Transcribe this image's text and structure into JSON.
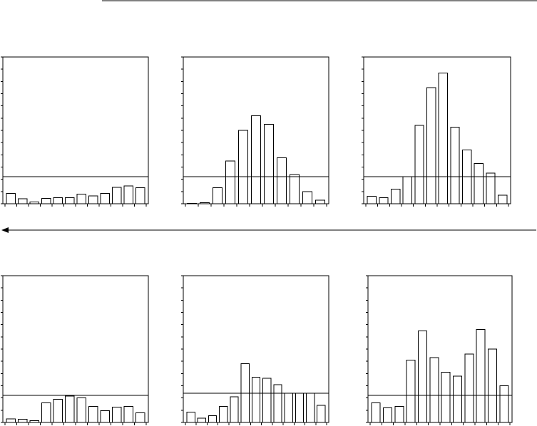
{
  "chart_data": [
    {
      "type": "bar",
      "ylim": [
        0,
        12
      ],
      "grid": false,
      "legend": "none",
      "reference_line": 2.2,
      "values": [
        0.85,
        0.4,
        0.15,
        0.45,
        0.5,
        0.5,
        0.8,
        0.65,
        0.85,
        1.35,
        1.45,
        1.3
      ]
    },
    {
      "type": "bar",
      "ylim": [
        0,
        12
      ],
      "grid": false,
      "legend": "none",
      "reference_line": 2.2,
      "values": [
        0.04,
        0.1,
        1.3,
        3.5,
        6.0,
        7.2,
        6.5,
        3.75,
        2.4,
        1.0,
        0.3
      ]
    },
    {
      "type": "bar",
      "ylim": [
        0,
        12
      ],
      "grid": false,
      "legend": "none",
      "reference_line": 2.2,
      "values": [
        0.6,
        0.5,
        1.2,
        2.2,
        6.4,
        9.5,
        10.7,
        6.25,
        4.4,
        3.3,
        2.5,
        0.7
      ]
    },
    {
      "type": "bar",
      "ylim": [
        0,
        12
      ],
      "grid": false,
      "legend": "none",
      "reference_line": 2.2,
      "values": [
        0.3,
        0.25,
        0.15,
        1.6,
        1.9,
        2.15,
        2.0,
        1.3,
        0.95,
        1.25,
        1.3,
        0.8
      ]
    },
    {
      "type": "bar",
      "ylim": [
        0,
        12
      ],
      "grid": false,
      "legend": "none",
      "reference_line": 2.4,
      "values": [
        0.85,
        0.35,
        0.55,
        1.3,
        2.1,
        4.8,
        3.7,
        3.6,
        3.1,
        2.4,
        2.4,
        2.4,
        1.4
      ]
    },
    {
      "type": "bar",
      "ylim": [
        0,
        12
      ],
      "grid": false,
      "legend": "none",
      "reference_line": 2.2,
      "values": [
        1.6,
        1.2,
        1.3,
        5.1,
        7.5,
        5.3,
        4.1,
        3.8,
        5.6,
        7.6,
        6.0,
        3.0
      ]
    }
  ]
}
